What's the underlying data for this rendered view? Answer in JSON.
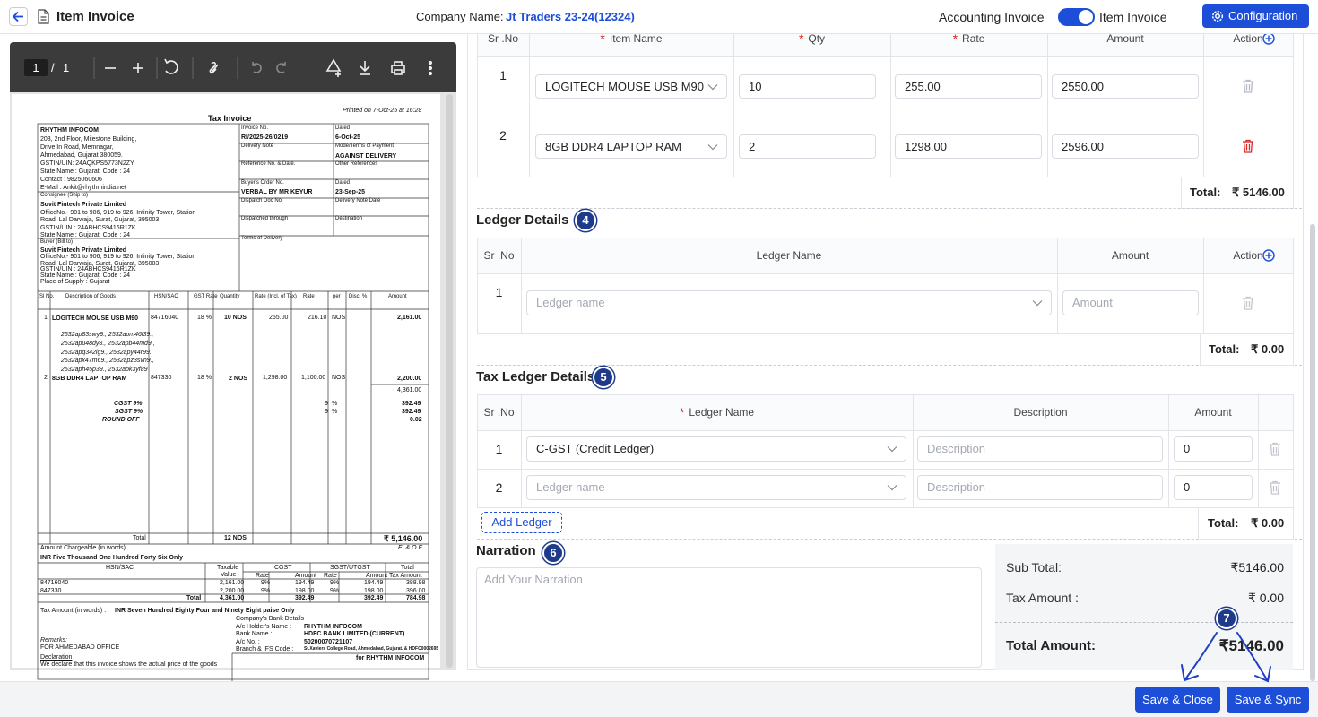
{
  "header": {
    "title": "Item Invoice",
    "company_label": "Company Name:",
    "company": "Jt Traders 23-24(12324)",
    "toggle_left": "Accounting Invoice",
    "toggle_right": "Item Invoice",
    "configuration": "Configuration"
  },
  "pdf_toolbar": {
    "page_current": "1",
    "page_separator": "/",
    "page_total": "1"
  },
  "invoice": {
    "texts": [
      "Printed on 7-Oct-25 at 16:28",
      "Tax Invoice",
      "RHYTHM INFOCOM",
      "203, 2nd Floor, Milestone Building,",
      "Drive In Road, Memnagar,",
      "Ahmedabad, Gujarat 380059.",
      "GSTIN/UIN: 24AQKPS5773N2ZY",
      "State Name : Gujarat, Code : 24",
      "Contact : 9825060606",
      "E-Mail : Ankit@rhythmindia.net",
      "Consignee (Ship to)",
      "Suvit Fintech Private Limited",
      "OfficeNo.- 901 to 906, 919 to 926, Infinity Tower, Station",
      "Road, Lal Darwaja, Surat, Gujarat, 395003",
      "GSTIN/UIN : 24ABHCS9416R1ZK",
      "State Name : Gujarat, Code : 24",
      "Buyer (Bill to)",
      "Suvit Fintech Private Limited",
      "OfficeNo.- 901 to 906, 919 to 926, Infinity Tower, Station",
      "Road, Lal Darwaja, Surat, Gujarat, 395003",
      "GSTIN/UIN : 24ABHCS9416R1ZK",
      "State Name : Gujarat, Code : 24",
      "Place of Supply : Gujarat",
      "Invoice No.",
      "RI/2025-26/0219",
      "Dated",
      "6-Oct-25",
      "Delivery Note",
      "Mode/Terms of Payment",
      "AGAINST DELIVERY",
      "Reference No. & Date.",
      "Other References",
      "Buyer's Order No.",
      "Dated",
      "VERBAL BY MR KEYUR",
      "23-Sep-25",
      "Dispatch Doc No.",
      "Delivery Note Date",
      "Dispatched through",
      "Destination",
      "Terms of Delivery",
      "Sl No.",
      "Description of Goods",
      "HSN/SAC",
      "GST Rate",
      "Quantity",
      "Rate (Incl. of Tax)",
      "Rate",
      "per",
      "Disc. %",
      "Amount",
      "1",
      "LOGITECH MOUSE USB M90",
      "84716040",
      "18 %",
      "10 NOS",
      "255.00",
      "216.10",
      "NOS",
      "2,161.00",
      "2532ap83swy9., 2532apm46l39.,",
      "2532apu48dy8., 2532apb44md9.,",
      "2532apq342ig9., 2532apy44r99.,",
      "2532apx47m69., 2532apz3svn9.,",
      "2532aph45p39., 2532apk3yf89",
      "2",
      "8GB DDR4 LAPTOP RAM",
      "847330",
      "18 %",
      "2 NOS",
      "1,298.00",
      "1,100.00",
      "NOS",
      "2,200.00",
      "4,361.00",
      "CGST 9%",
      "SGST 9%",
      "ROUND OFF",
      "9",
      "%",
      "9",
      "%",
      "392.49",
      "392.49",
      "0.02",
      "Total",
      "12 NOS",
      "₹ 5,146.00",
      "Amount Chargeable (in words)",
      "E. & O.E",
      "INR Five Thousand One Hundred Forty Six Only",
      "HSN/SAC",
      "Taxable",
      "Value",
      "CGST",
      "SGST/UTGST",
      "Total",
      "Rate",
      "Amount",
      "Rate",
      "Amount",
      "Tax Amount",
      "84716040",
      "2,161.00",
      "9%",
      "194.49",
      "9%",
      "194.49",
      "388.98",
      "847330",
      "2,200.00",
      "9%",
      "198.00",
      "9%",
      "198.00",
      "396.00",
      "Total",
      "4,361.00",
      "392.49",
      "392.49",
      "784.98",
      "Tax Amount (in words) :",
      "INR Seven Hundred Eighty Four and Ninety Eight paise Only",
      "Company's Bank Details",
      "A/c Holder's Name :",
      "RHYTHM INFOCOM",
      "Bank Name :",
      "HDFC BANK LIMITED (CURRENT)",
      "A/c No. :",
      "50200070721107",
      "Branch & IFS Code :",
      "St.Xaviers College Road, Ahmedabad, Gujarat. & HDFC0002695",
      "Remarks:",
      "FOR AHMEDABAD OFFICE",
      "Declaration",
      "We declare that this invoice shows the actual price of the goods",
      "for RHYTHM INFOCOM"
    ]
  },
  "required_mark": "*",
  "items": {
    "headers": [
      "Sr .No",
      "Item Name",
      "Qty",
      "Rate",
      "Amount",
      "Action"
    ],
    "rows": [
      [
        "1",
        "LOGITECH MOUSE USB M90",
        "10",
        "255.00",
        "2550.00"
      ],
      [
        "2",
        "8GB DDR4 LAPTOP RAM",
        "2",
        "1298.00",
        "2596.00"
      ]
    ],
    "total_label": "Total:",
    "total": "₹ 5146.00"
  },
  "ledger": {
    "title": "Ledger Details",
    "step": "4",
    "headers": [
      "Sr .No",
      "Ledger Name",
      "Amount",
      "Action"
    ],
    "rows": [
      {
        "sr": "1",
        "ledger_placeholder": "Ledger name",
        "amount_placeholder": "Amount"
      }
    ],
    "total_label": "Total:",
    "total": "₹ 0.00"
  },
  "tax_ledger": {
    "title": "Tax Ledger Details",
    "step": "5",
    "headers": [
      "Sr .No",
      "Ledger Name",
      "Description",
      "Amount"
    ],
    "rows": [
      {
        "sr": "1",
        "ledger": "C-GST (Credit Ledger)",
        "description_placeholder": "Description",
        "amount": "0"
      },
      {
        "sr": "2",
        "ledger_placeholder": "Ledger name",
        "description_placeholder": "Description",
        "amount": "0"
      }
    ],
    "add": "Add Ledger",
    "total_label": "Total:",
    "total": "₹ 0.00"
  },
  "narration": {
    "title": "Narration",
    "step": "6",
    "placeholder": "Add Your Narration"
  },
  "summary": {
    "sub_total_label": "Sub Total:",
    "sub_total": "₹5146.00",
    "tax_label": "Tax Amount :",
    "tax": "₹ 0.00",
    "total_label": "Total Amount:",
    "total": "₹5146.00",
    "step": "7"
  },
  "footer": {
    "save_close": "Save & Close",
    "save_sync": "Save & Sync"
  }
}
